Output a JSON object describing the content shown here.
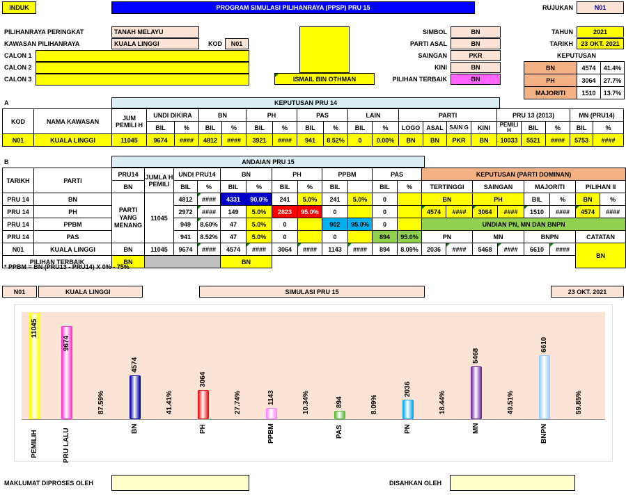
{
  "header": {
    "induk": "INDUK",
    "title": "PROGRAM SIMULASI PILIHANRAYA (PPSP) PRU 15",
    "rujukan_label": "RUJUKAN",
    "rujukan": "N01"
  },
  "info": {
    "pilihanraya_label": "PILIHANRAYA PERINGKAT",
    "pilihanraya": "TANAH MELAYU",
    "kawasan_label": "KAWASAN PILIHANRAYA",
    "kawasan": "KUALA LINGGI",
    "kod_label": "KOD",
    "kod": "N01",
    "calon1": "CALON 1",
    "calon2": "CALON 2",
    "calon3": "CALON 3",
    "candidate_name": "ISMAIL BIN OTHMAN"
  },
  "party": {
    "simbol_label": "SIMBOL",
    "simbol": "BN",
    "parti_asal_label": "PARTI ASAL",
    "parti_asal": "BN",
    "saingan_label": "SAINGAN",
    "saingan": "PKR",
    "kini_label": "KINI",
    "kini": "BN",
    "pilihan_label": "PILIHAN TERBAIK",
    "pilihan": "BN"
  },
  "date": {
    "tahun_label": "TAHUN",
    "tahun": "2021",
    "tarikh_label": "TARIKH",
    "tarikh": "23 OKT. 2021",
    "keputusan_label": "KEPUTUSAN"
  },
  "keputusan": [
    [
      "BN",
      "4574",
      "41.4%"
    ],
    [
      "PH",
      "3064",
      "27.7%"
    ],
    [
      "MAJORITI",
      "1510",
      "13.7%"
    ]
  ],
  "secA": {
    "label": "A",
    "title": "KEPUTUSAN PRU 14",
    "h1": [
      "KOD",
      "NAMA KAWASAN",
      "JUM PEMILI H",
      "UNDI DIKIRA",
      "BN",
      "PH",
      "PAS",
      "LAIN",
      "PARTI",
      "PRU 13 (2013)",
      "MN (PRU14)"
    ],
    "h2": [
      "BIL",
      "%",
      "BIL",
      "%",
      "BIL",
      "%",
      "BIL",
      "%",
      "BIL",
      "%",
      "LOGO",
      "ASAL",
      "SAIN G",
      "KINI",
      "PEMILI H",
      "BIL",
      "%",
      "BIL",
      "%"
    ],
    "row": [
      "N01",
      "KUALA LINGGI",
      "11045",
      "9674",
      "####",
      "4812",
      "####",
      "3921",
      "####",
      "941",
      "8.52%",
      "0",
      "0.00%",
      "BN",
      "BN",
      "PKR",
      "BN",
      "10033",
      "5521",
      "####",
      "5753",
      "####"
    ]
  },
  "secB": {
    "label": "B",
    "title": "ANDAIAN PRU 15",
    "h1": [
      "TARIKH",
      "PARTI",
      "PRU14",
      "JUMLA H PEMILI",
      "UNDI PRU14",
      "BN",
      "PH",
      "PPBM",
      "PAS",
      "KEPUTUSAN (PARTI DOMINAN)"
    ],
    "h2": [
      "BN",
      "BIL",
      "%",
      "BIL",
      "%",
      "BIL",
      "%",
      "BIL",
      "BIL",
      "%",
      "TERTINGGI",
      "SAINGAN",
      "MAJORITI",
      "PILIHAN II"
    ],
    "h3": [
      "BN",
      "PH",
      "BIL",
      "%",
      "BN",
      "%"
    ],
    "rows": [
      [
        "PRU 14",
        "BN",
        "4812",
        "####",
        "4331",
        "90.0%",
        "241",
        "5.0%",
        "241",
        "5.0%",
        "0",
        ""
      ],
      [
        "PRU 14",
        "PH",
        "2972",
        "####",
        "149",
        "5.0%",
        "2823",
        "95.0%",
        "0",
        "",
        "0",
        ""
      ],
      [
        "PRU 14",
        "PPBM",
        "949",
        "8.60%",
        "47",
        "5.0%",
        "0",
        "",
        "902",
        "95.0%",
        "0",
        ""
      ],
      [
        "PRU 14",
        "PAS",
        "941",
        "8.52%",
        "47",
        "5.0%",
        "0",
        "",
        "0",
        "",
        "894",
        "95.0%"
      ]
    ],
    "parti_yang": "PARTI YANG MENANG",
    "jumlah": "11045",
    "tot": [
      "N01",
      "KUALA LINGGI",
      "BN",
      "11045",
      "9674",
      "####",
      "4574",
      "####",
      "3064",
      "####",
      "1143",
      "####",
      "894",
      "8.09%",
      "2036",
      "####",
      "5468",
      "####",
      "6610",
      "####"
    ],
    "k_row2": [
      "4574",
      "####",
      "3064",
      "####",
      "1510",
      "####",
      "4574",
      "####"
    ],
    "undian": "UNDIAN PN, MN DAN BNPN",
    "pn_row": [
      "PN",
      "MN",
      "BNPN",
      "CATATAN"
    ],
    "pilihan_label": "PILIHAN TERBAIK",
    "pilihan_bn": "BN",
    "pilihan_bn2": "BN",
    "catatan": "BN",
    "note": "* PPBM = BN (PRU13 - PRU14) X 0% - 75%"
  },
  "footer_bar": {
    "kod": "N01",
    "kawasan": "KUALA LINGGI",
    "sim": "SIMULASI PRU 15",
    "date": "23 OKT. 2021"
  },
  "chart_data": {
    "type": "bar",
    "categories": [
      "PEMILIH",
      "PRU LALU",
      "BN",
      "PH",
      "PPBM",
      "PAS",
      "PN",
      "MN",
      "BNPN"
    ],
    "values": [
      11045,
      9674,
      4574,
      3064,
      1143,
      894,
      2036,
      5468,
      6610
    ],
    "pct_labels": [
      "87.59%",
      "41.41%",
      "27.74%",
      "10.34%",
      "8.09%",
      "18.44%",
      "49.51%",
      "59.85%"
    ],
    "colors": [
      "#ffff00",
      "#ff33cc",
      "#0000aa",
      "#ee1111",
      "#ff88ff",
      "#55bb33",
      "#00aaee",
      "#7030a0",
      "#99ccff"
    ]
  },
  "bottom": {
    "proses": "MAKLUMAT DIPROSES OLEH",
    "sahkan": "DISAHKAN OLEH"
  }
}
